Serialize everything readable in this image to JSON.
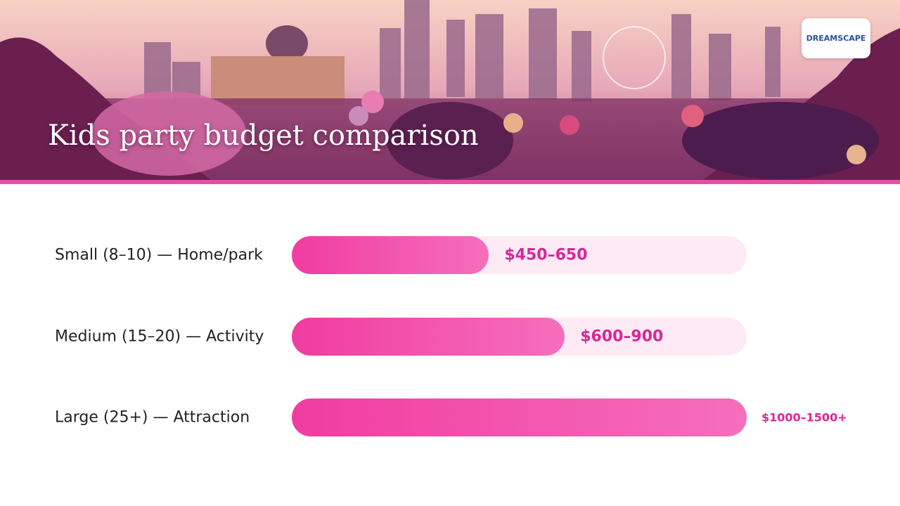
{
  "logo": {
    "text": "DREAMSCAPE"
  },
  "chart_data": {
    "type": "bar",
    "orientation": "horizontal",
    "title": "Kids party budget comparison",
    "categories": [
      "Small (8–10) — Home/park",
      "Medium (15–20) — Activity",
      "Large (25+) — Attraction"
    ],
    "values": [
      650,
      900,
      1500
    ],
    "value_labels": [
      "$450–650",
      "$600–900",
      "$1000–1500+"
    ],
    "xlim": [
      0,
      1500
    ],
    "color": "#f03ca0"
  }
}
